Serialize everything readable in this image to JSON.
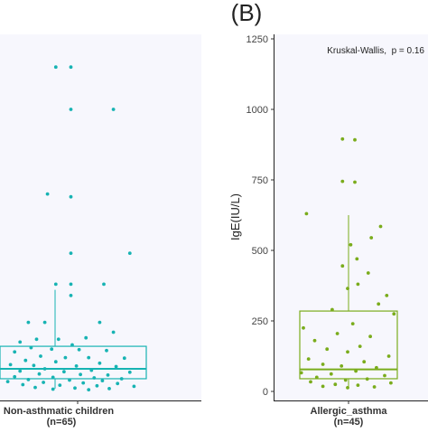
{
  "panel_label": "(B)",
  "chart_data": [
    {
      "type": "box",
      "category": "Non-asthmatic children",
      "n_label": "(n=65)",
      "color": "#17b3b3",
      "box": {
        "q1": 45,
        "median": 80,
        "q3": 160,
        "whisker_low": 10,
        "whisker_high": 360
      },
      "points": [
        [
          0.38,
          1150
        ],
        [
          0.49,
          1150
        ],
        [
          0.49,
          1000
        ],
        [
          0.8,
          1000
        ],
        [
          0.32,
          700
        ],
        [
          0.49,
          690
        ],
        [
          0.49,
          490
        ],
        [
          0.92,
          490
        ],
        [
          0.38,
          380
        ],
        [
          0.49,
          380
        ],
        [
          0.73,
          380
        ],
        [
          0.49,
          340
        ],
        [
          0.18,
          245
        ],
        [
          0.3,
          245
        ],
        [
          0.7,
          245
        ],
        [
          0.8,
          210
        ],
        [
          0.6,
          190
        ],
        [
          0.24,
          185
        ],
        [
          0.4,
          185
        ],
        [
          0.12,
          175
        ],
        [
          0.5,
          165
        ],
        [
          0.2,
          155
        ],
        [
          0.35,
          150
        ],
        [
          0.55,
          148
        ],
        [
          0.75,
          145
        ],
        [
          0.08,
          140
        ],
        [
          0.27,
          125
        ],
        [
          0.45,
          120
        ],
        [
          0.62,
          120
        ],
        [
          0.88,
          118
        ],
        [
          0.16,
          110
        ],
        [
          0.38,
          105
        ],
        [
          0.7,
          100
        ],
        [
          0.05,
          95
        ],
        [
          0.22,
          92
        ],
        [
          0.53,
          90
        ],
        [
          0.82,
          88
        ],
        [
          0.3,
          80
        ],
        [
          0.64,
          75
        ],
        [
          0.12,
          72
        ],
        [
          0.44,
          70
        ],
        [
          0.92,
          68
        ],
        [
          0.26,
          62
        ],
        [
          0.56,
          60
        ],
        [
          0.76,
          58
        ],
        [
          0.08,
          52
        ],
        [
          0.36,
          50
        ],
        [
          0.66,
          48
        ],
        [
          0.86,
          45
        ],
        [
          0.18,
          42
        ],
        [
          0.48,
          40
        ],
        [
          0.72,
          38
        ],
        [
          0.03,
          35
        ],
        [
          0.29,
          32
        ],
        [
          0.58,
          30
        ],
        [
          0.83,
          28
        ],
        [
          0.14,
          24
        ],
        [
          0.41,
          22
        ],
        [
          0.68,
          20
        ],
        [
          0.95,
          18
        ],
        [
          0.23,
          14
        ],
        [
          0.52,
          12
        ],
        [
          0.77,
          10
        ],
        [
          0.36,
          8
        ],
        [
          0.62,
          6
        ]
      ]
    },
    {
      "type": "box",
      "category": "Allergic_asthma",
      "n_label": "(n=45)",
      "color": "#7aac1c",
      "box": {
        "q1": 45,
        "median": 78,
        "q3": 285,
        "whisker_low": 12,
        "whisker_high": 625
      },
      "points": [
        [
          0.45,
          895
        ],
        [
          0.57,
          892
        ],
        [
          0.45,
          745
        ],
        [
          0.57,
          742
        ],
        [
          0.1,
          630
        ],
        [
          0.82,
          585
        ],
        [
          0.73,
          545
        ],
        [
          0.53,
          520
        ],
        [
          0.59,
          470
        ],
        [
          0.45,
          445
        ],
        [
          0.7,
          420
        ],
        [
          0.6,
          380
        ],
        [
          0.5,
          365
        ],
        [
          0.88,
          340
        ],
        [
          0.8,
          310
        ],
        [
          0.35,
          290
        ],
        [
          0.95,
          275
        ],
        [
          0.55,
          240
        ],
        [
          0.07,
          225
        ],
        [
          0.4,
          205
        ],
        [
          0.72,
          195
        ],
        [
          0.18,
          180
        ],
        [
          0.62,
          160
        ],
        [
          0.3,
          150
        ],
        [
          0.5,
          140
        ],
        [
          0.9,
          125
        ],
        [
          0.12,
          115
        ],
        [
          0.66,
          105
        ],
        [
          0.26,
          96
        ],
        [
          0.44,
          90
        ],
        [
          0.78,
          84
        ],
        [
          0.58,
          72
        ],
        [
          0.05,
          66
        ],
        [
          0.34,
          62
        ],
        [
          0.86,
          56
        ],
        [
          0.2,
          50
        ],
        [
          0.69,
          44
        ],
        [
          0.48,
          40
        ],
        [
          0.14,
          34
        ],
        [
          0.92,
          30
        ],
        [
          0.38,
          25
        ],
        [
          0.6,
          22
        ],
        [
          0.26,
          18
        ],
        [
          0.76,
          16
        ],
        [
          0.5,
          13
        ]
      ]
    }
  ],
  "y_axis": {
    "label": "IgE(IU/L)",
    "ticks": [
      "0",
      "250",
      "500",
      "750",
      "1000",
      "1250"
    ],
    "range": [
      0,
      1250
    ]
  },
  "annotation": "Kruskal-Wallis,  p = 0.16"
}
